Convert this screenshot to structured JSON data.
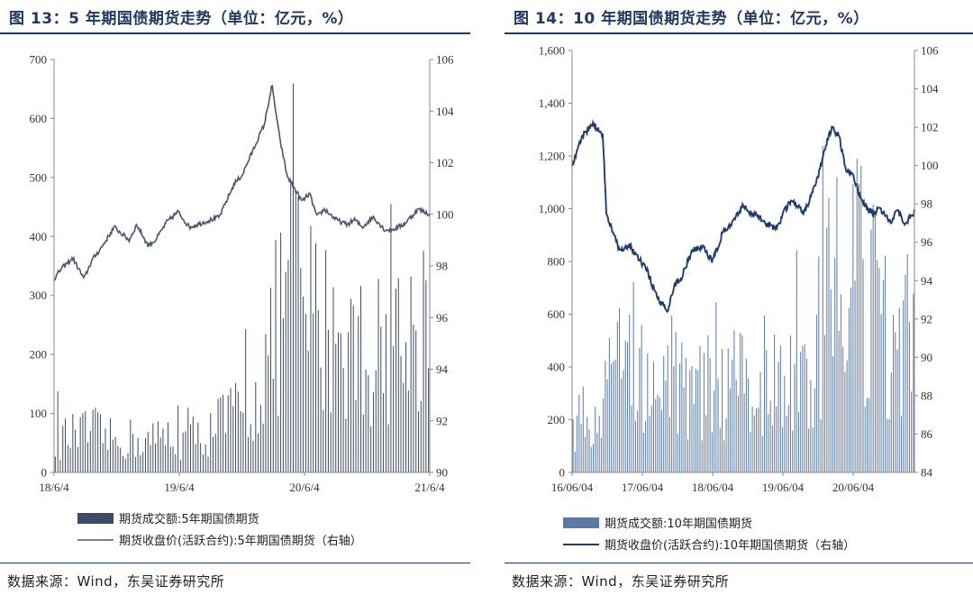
{
  "left": {
    "title": "图 13：5 年期国债期货走势（单位：亿元，%）",
    "source": "数据来源：Wind，东吴证券研究所",
    "chart_data": {
      "type": "bar+line",
      "colors": {
        "bar": "#3d4a66",
        "line": "#4a5570"
      },
      "left_axis": {
        "ylim": [
          0,
          700
        ],
        "ticks": [
          "0",
          "100",
          "200",
          "300",
          "400",
          "500",
          "600",
          "700"
        ]
      },
      "right_axis": {
        "ylim": [
          90,
          106
        ],
        "ticks": [
          "90",
          "92",
          "94",
          "96",
          "98",
          "100",
          "102",
          "104",
          "106"
        ]
      },
      "x_ticks": [
        "18/6/4",
        "19/6/4",
        "20/6/4",
        "21/6/4"
      ],
      "legend": [
        "期货成交额:5年期国债期货",
        "期货收盘价(活跃合约):5年期国债期货（右轴）"
      ],
      "series": [
        {
          "name": "期货成交额:5年期国债期货",
          "axis": "left",
          "kind": "bar",
          "t": [
            0,
            0.06,
            0.1,
            0.16,
            0.2,
            0.25,
            0.3,
            0.35,
            0.4,
            0.45,
            0.5,
            0.53,
            0.57,
            0.6,
            0.63,
            0.66,
            0.7,
            0.74,
            0.78,
            0.82,
            0.86,
            0.9,
            0.94,
            0.97,
            1
          ],
          "values": [
            65,
            70,
            80,
            60,
            65,
            60,
            70,
            65,
            75,
            100,
            120,
            140,
            220,
            300,
            400,
            330,
            290,
            280,
            260,
            240,
            230,
            280,
            240,
            300,
            330
          ]
        },
        {
          "name": "期货收盘价(活跃合约):5年期国债期货（右轴）",
          "axis": "right",
          "kind": "line",
          "t": [
            0,
            0.02,
            0.05,
            0.08,
            0.1,
            0.13,
            0.16,
            0.2,
            0.22,
            0.25,
            0.27,
            0.3,
            0.33,
            0.36,
            0.4,
            0.44,
            0.48,
            0.5,
            0.53,
            0.56,
            0.58,
            0.6,
            0.62,
            0.64,
            0.66,
            0.68,
            0.7,
            0.72,
            0.75,
            0.78,
            0.8,
            0.82,
            0.85,
            0.88,
            0.9,
            0.93,
            0.95,
            0.97,
            1
          ],
          "values": [
            97.5,
            97.9,
            98.3,
            97.5,
            98.2,
            98.8,
            99.5,
            99.0,
            99.6,
            98.8,
            99.0,
            99.7,
            100.1,
            99.5,
            99.7,
            99.9,
            101.2,
            101.5,
            102.5,
            103.5,
            105.0,
            103.0,
            101.5,
            101.0,
            100.5,
            100.8,
            99.9,
            100.2,
            99.8,
            99.6,
            99.8,
            99.5,
            99.9,
            99.4,
            99.4,
            99.6,
            99.9,
            100.2,
            100.0
          ]
        }
      ]
    }
  },
  "right": {
    "title": "图 14：10 年期国债期货走势（单位：亿元，%）",
    "source": "数据来源：Wind，东吴证券研究所",
    "chart_data": {
      "type": "bar+line",
      "colors": {
        "bar": "#5b7aa6",
        "line": "#1f3c6e"
      },
      "left_axis": {
        "ylim": [
          0,
          1600
        ],
        "ticks": [
          "0",
          "200",
          "400",
          "600",
          "800",
          "1,000",
          "1,200",
          "1,400",
          "1,600"
        ]
      },
      "right_axis": {
        "ylim": [
          84,
          106
        ],
        "ticks": [
          "84",
          "86",
          "88",
          "90",
          "92",
          "94",
          "96",
          "98",
          "100",
          "102",
          "104",
          "106"
        ]
      },
      "x_ticks": [
        "16/06/04",
        "17/06/04",
        "18/06/04",
        "19/06/04",
        "20/06/04"
      ],
      "legend": [
        "期货成交额:10年期国债期货",
        "期货收盘价(活跃合约):10年期国债期货（右轴）"
      ],
      "series": [
        {
          "name": "期货成交额:10年期国债期货",
          "axis": "left",
          "kind": "bar",
          "t": [
            0,
            0.05,
            0.09,
            0.13,
            0.17,
            0.2,
            0.25,
            0.3,
            0.35,
            0.4,
            0.45,
            0.5,
            0.55,
            0.6,
            0.65,
            0.7,
            0.74,
            0.78,
            0.82,
            0.86,
            0.9,
            0.94,
            0.97,
            1
          ],
          "values": [
            220,
            240,
            250,
            580,
            560,
            500,
            460,
            420,
            380,
            370,
            360,
            400,
            420,
            380,
            390,
            420,
            700,
            850,
            900,
            820,
            650,
            520,
            600,
            560
          ]
        },
        {
          "name": "期货收盘价(活跃合约):10年期国债期货（右轴）",
          "axis": "right",
          "kind": "line",
          "t": [
            0,
            0.03,
            0.06,
            0.09,
            0.1,
            0.12,
            0.14,
            0.17,
            0.2,
            0.22,
            0.25,
            0.28,
            0.3,
            0.32,
            0.35,
            0.38,
            0.41,
            0.44,
            0.47,
            0.5,
            0.52,
            0.55,
            0.58,
            0.6,
            0.62,
            0.64,
            0.66,
            0.68,
            0.7,
            0.72,
            0.74,
            0.76,
            0.78,
            0.8,
            0.82,
            0.85,
            0.88,
            0.9,
            0.93,
            0.95,
            0.97,
            1
          ],
          "values": [
            100,
            101.5,
            102.2,
            101.6,
            97.5,
            96.5,
            95.5,
            95.8,
            95.0,
            94.5,
            93.0,
            92.5,
            93.8,
            94.2,
            95.5,
            95.8,
            95.0,
            96.5,
            97.0,
            98.0,
            97.5,
            97.3,
            96.8,
            96.8,
            97.6,
            98.2,
            97.8,
            97.6,
            98.5,
            99.5,
            101.0,
            102.0,
            101.5,
            99.8,
            99.5,
            98.0,
            97.5,
            97.8,
            97.0,
            97.8,
            96.9,
            97.6
          ]
        }
      ]
    }
  }
}
